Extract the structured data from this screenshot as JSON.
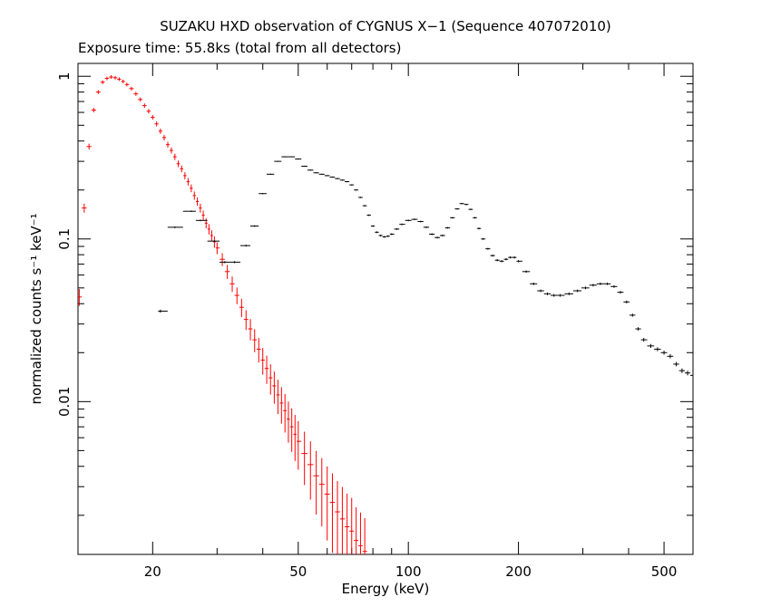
{
  "chart_data": {
    "type": "scatter",
    "title": "SUZAKU HXD observation of CYGNUS X−1 (Sequence 407072010)",
    "subtitle": "Exposure time: 55.8ks (total from all detectors)",
    "xlabel": "Energy (keV)",
    "ylabel": "normalized counts s⁻¹ keV⁻¹",
    "xscale": "log",
    "yscale": "log",
    "xlim": [
      12.5,
      600
    ],
    "ylim": [
      0.00115,
      1.2
    ],
    "xticks": [
      {
        "value": 20,
        "label": "20"
      },
      {
        "value": 50,
        "label": "50"
      },
      {
        "value": 100,
        "label": "100"
      },
      {
        "value": 200,
        "label": "200"
      },
      {
        "value": 500,
        "label": "500"
      }
    ],
    "yticks": [
      {
        "value": 1,
        "label": "1"
      },
      {
        "value": 0.1,
        "label": "0.1"
      },
      {
        "value": 0.01,
        "label": "0.01"
      }
    ],
    "grid": false,
    "legend": "none",
    "colors": {
      "pin": "#ff0000",
      "gso": "#000000"
    },
    "series": [
      {
        "color": "#ff0000",
        "points": [
          [
            12.6,
            0.044
          ],
          [
            13.0,
            0.155
          ],
          [
            13.4,
            0.37
          ],
          [
            13.8,
            0.62
          ],
          [
            14.2,
            0.8
          ],
          [
            14.6,
            0.92
          ],
          [
            15.0,
            0.97
          ],
          [
            15.4,
            0.99
          ],
          [
            15.8,
            0.98
          ],
          [
            16.2,
            0.96
          ],
          [
            16.6,
            0.93
          ],
          [
            17.0,
            0.89
          ],
          [
            17.5,
            0.84
          ],
          [
            18.0,
            0.78
          ],
          [
            18.5,
            0.72
          ],
          [
            19.0,
            0.66
          ],
          [
            19.5,
            0.61
          ],
          [
            20.0,
            0.56
          ],
          [
            20.5,
            0.51
          ],
          [
            21.0,
            0.46
          ],
          [
            21.5,
            0.42
          ],
          [
            22.0,
            0.38
          ],
          [
            22.5,
            0.35
          ],
          [
            23.0,
            0.32
          ],
          [
            23.5,
            0.29
          ],
          [
            24.0,
            0.27
          ],
          [
            24.5,
            0.245
          ],
          [
            25.0,
            0.225
          ],
          [
            25.5,
            0.205
          ],
          [
            26.0,
            0.185
          ],
          [
            26.5,
            0.17
          ],
          [
            27.0,
            0.155
          ],
          [
            27.5,
            0.14
          ],
          [
            28.0,
            0.125
          ],
          [
            28.5,
            0.115
          ],
          [
            29.0,
            0.105
          ],
          [
            29.5,
            0.096
          ],
          [
            30.0,
            0.088
          ],
          [
            31.0,
            0.075
          ],
          [
            32.0,
            0.063
          ],
          [
            33.0,
            0.053
          ],
          [
            34.0,
            0.045
          ],
          [
            35.0,
            0.038
          ],
          [
            36.0,
            0.032
          ],
          [
            37.0,
            0.028
          ],
          [
            38.0,
            0.024
          ],
          [
            39.0,
            0.021
          ],
          [
            40.0,
            0.018
          ],
          [
            41.0,
            0.016
          ],
          [
            42.0,
            0.014
          ],
          [
            43.0,
            0.0125
          ],
          [
            44.0,
            0.011
          ],
          [
            45.0,
            0.0098
          ],
          [
            46.0,
            0.0088
          ],
          [
            47.0,
            0.0078
          ],
          [
            48.0,
            0.007
          ],
          [
            49.0,
            0.0063
          ],
          [
            50.0,
            0.0057
          ],
          [
            52.0,
            0.0048
          ],
          [
            54.0,
            0.0041
          ],
          [
            56.0,
            0.0035
          ],
          [
            58.0,
            0.0031
          ],
          [
            60.0,
            0.0027
          ],
          [
            62.0,
            0.0024
          ],
          [
            64.0,
            0.0021
          ],
          [
            66.0,
            0.0019
          ],
          [
            68.0,
            0.0017
          ],
          [
            70.0,
            0.0016
          ],
          [
            72.0,
            0.0014
          ],
          [
            74.0,
            0.0013
          ],
          [
            76.0,
            0.0012
          ]
        ]
      },
      {
        "color": "#000000",
        "points": [
          [
            21.0,
            0.036
          ],
          [
            23.0,
            0.118
          ],
          [
            25.5,
            0.148
          ],
          [
            27.0,
            0.13
          ],
          [
            29.5,
            0.097
          ],
          [
            31.5,
            0.072
          ],
          [
            33.5,
            0.072
          ],
          [
            36.0,
            0.091
          ],
          [
            38.0,
            0.12
          ],
          [
            40.0,
            0.19
          ],
          [
            42.0,
            0.25
          ],
          [
            44.0,
            0.3
          ],
          [
            46.0,
            0.32
          ],
          [
            48.0,
            0.32
          ],
          [
            50.0,
            0.31
          ],
          [
            52.0,
            0.28
          ],
          [
            54.0,
            0.265
          ],
          [
            56.0,
            0.255
          ],
          [
            58.0,
            0.25
          ],
          [
            60.0,
            0.245
          ],
          [
            62.0,
            0.24
          ],
          [
            64.0,
            0.235
          ],
          [
            66.0,
            0.23
          ],
          [
            68.0,
            0.225
          ],
          [
            70.0,
            0.215
          ],
          [
            72.0,
            0.2
          ],
          [
            74.0,
            0.18
          ],
          [
            76.0,
            0.16
          ],
          [
            78.0,
            0.14
          ],
          [
            80.0,
            0.12
          ],
          [
            82.0,
            0.11
          ],
          [
            84.0,
            0.105
          ],
          [
            86.0,
            0.103
          ],
          [
            88.0,
            0.104
          ],
          [
            90.0,
            0.107
          ],
          [
            93.0,
            0.115
          ],
          [
            96.0,
            0.123
          ],
          [
            100.0,
            0.13
          ],
          [
            104.0,
            0.132
          ],
          [
            108.0,
            0.128
          ],
          [
            112.0,
            0.118
          ],
          [
            116.0,
            0.107
          ],
          [
            120.0,
            0.102
          ],
          [
            124.0,
            0.105
          ],
          [
            128.0,
            0.117
          ],
          [
            132.0,
            0.135
          ],
          [
            136.0,
            0.153
          ],
          [
            140.0,
            0.165
          ],
          [
            144.0,
            0.163
          ],
          [
            148.0,
            0.152
          ],
          [
            152.0,
            0.135
          ],
          [
            156.0,
            0.116
          ],
          [
            160.0,
            0.1
          ],
          [
            165.0,
            0.087
          ],
          [
            170.0,
            0.079
          ],
          [
            175.0,
            0.074
          ],
          [
            180.0,
            0.073
          ],
          [
            185.0,
            0.075
          ],
          [
            190.0,
            0.077
          ],
          [
            195.0,
            0.077
          ],
          [
            200.0,
            0.073
          ],
          [
            210.0,
            0.063
          ],
          [
            220.0,
            0.053
          ],
          [
            230.0,
            0.048
          ],
          [
            240.0,
            0.046
          ],
          [
            250.0,
            0.045
          ],
          [
            260.0,
            0.045
          ],
          [
            275.0,
            0.046
          ],
          [
            290.0,
            0.048
          ],
          [
            305.0,
            0.05
          ],
          [
            320.0,
            0.052
          ],
          [
            335.0,
            0.053
          ],
          [
            350.0,
            0.053
          ],
          [
            365.0,
            0.051
          ],
          [
            380.0,
            0.047
          ],
          [
            395.0,
            0.041
          ],
          [
            410.0,
            0.034
          ],
          [
            425.0,
            0.028
          ],
          [
            440.0,
            0.024
          ],
          [
            460.0,
            0.022
          ],
          [
            480.0,
            0.021
          ],
          [
            500.0,
            0.02
          ],
          [
            520.0,
            0.019
          ],
          [
            540.0,
            0.017
          ],
          [
            560.0,
            0.0155
          ],
          [
            580.0,
            0.015
          ],
          [
            600.0,
            0.0145
          ]
        ]
      }
    ]
  }
}
